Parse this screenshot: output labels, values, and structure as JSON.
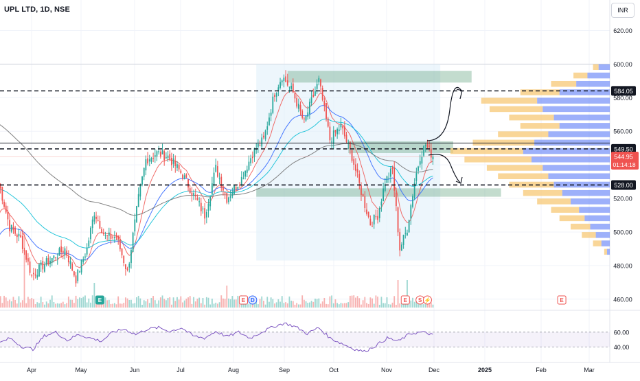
{
  "header": {
    "title": "UPL LTD, 1D, NSE",
    "currency": "INR"
  },
  "colors": {
    "up": "#26a69a",
    "down": "#ef5350",
    "ema_fast": "#ef5350",
    "ema_mid": "#2962ff",
    "ema_slow": "#00bcd4",
    "ema_long": "#6d6d6d",
    "rsi": "#7e57c2",
    "vp_up": "#f7c46c",
    "vp_down": "#5b7cf6",
    "zone": "#6aa884",
    "range": "#dfeefa"
  },
  "chart_data": [
    {
      "type": "candlestick",
      "title": "UPL LTD, 1D, NSE",
      "x_ticks": [
        "Apr",
        "May",
        "Jun",
        "Jul",
        "Aug",
        "Sep",
        "Oct",
        "Nov",
        "Dec",
        "2025",
        "Feb",
        "Mar"
      ],
      "y_ticks": [
        "460.00",
        "480.00",
        "500.00",
        "520.00",
        "540.00",
        "560.00",
        "580.00",
        "600.00",
        "620.00"
      ],
      "ylim": [
        455,
        630
      ],
      "price_path": [
        {
          "day": 0,
          "close": 530
        },
        {
          "day": 6,
          "close": 503
        },
        {
          "day": 12,
          "close": 496
        },
        {
          "day": 18,
          "close": 474
        },
        {
          "day": 24,
          "close": 480
        },
        {
          "day": 30,
          "close": 485
        },
        {
          "day": 36,
          "close": 490
        },
        {
          "day": 42,
          "close": 472
        },
        {
          "day": 48,
          "close": 490
        },
        {
          "day": 52,
          "close": 512
        },
        {
          "day": 58,
          "close": 497
        },
        {
          "day": 64,
          "close": 497
        },
        {
          "day": 70,
          "close": 476
        },
        {
          "day": 76,
          "close": 520
        },
        {
          "day": 80,
          "close": 543
        },
        {
          "day": 86,
          "close": 547
        },
        {
          "day": 92,
          "close": 545
        },
        {
          "day": 100,
          "close": 534
        },
        {
          "day": 106,
          "close": 522
        },
        {
          "day": 112,
          "close": 510
        },
        {
          "day": 118,
          "close": 538
        },
        {
          "day": 124,
          "close": 520
        },
        {
          "day": 132,
          "close": 532
        },
        {
          "day": 138,
          "close": 547
        },
        {
          "day": 144,
          "close": 555
        },
        {
          "day": 150,
          "close": 583
        },
        {
          "day": 154,
          "close": 593
        },
        {
          "day": 160,
          "close": 583
        },
        {
          "day": 166,
          "close": 565
        },
        {
          "day": 170,
          "close": 578
        },
        {
          "day": 174,
          "close": 590
        },
        {
          "day": 180,
          "close": 555
        },
        {
          "day": 186,
          "close": 563
        },
        {
          "day": 192,
          "close": 545
        },
        {
          "day": 198,
          "close": 520
        },
        {
          "day": 202,
          "close": 505
        },
        {
          "day": 206,
          "close": 510
        },
        {
          "day": 210,
          "close": 530
        },
        {
          "day": 214,
          "close": 537
        },
        {
          "day": 218,
          "close": 490
        },
        {
          "day": 222,
          "close": 502
        },
        {
          "day": 226,
          "close": 530
        },
        {
          "day": 229,
          "close": 545
        },
        {
          "day": 232,
          "close": 552
        },
        {
          "day": 236,
          "close": 544.95
        }
      ],
      "horizontal_levels": [
        {
          "price": 584.05,
          "label": "584.05",
          "style": "dashed"
        },
        {
          "price": 549.5,
          "label": "549.50",
          "style": "dashed"
        },
        {
          "price": 528.0,
          "label": "528.00",
          "style": "dashed"
        },
        {
          "price": 553.0,
          "label": "",
          "style": "solid"
        }
      ],
      "last_price": {
        "label": "544.95",
        "countdown": "01:14:18"
      },
      "zones": [
        {
          "from_day": 157,
          "to_day": 257,
          "low": 589,
          "high": 596
        },
        {
          "from_day": 190,
          "to_day": 247,
          "low": 547,
          "high": 554
        },
        {
          "from_day": 140,
          "to_day": 273,
          "low": 521,
          "high": 526
        }
      ],
      "range_box": {
        "from_day": 140,
        "to_day": 240,
        "low": 483,
        "high": 600
      },
      "volume_profile_rows": [
        {
          "price": 598,
          "up": 10,
          "down": 20
        },
        {
          "price": 593,
          "up": 25,
          "down": 40
        },
        {
          "price": 588,
          "up": 45,
          "down": 60
        },
        {
          "price": 583,
          "up": 70,
          "down": 90
        },
        {
          "price": 578,
          "up": 100,
          "down": 130
        },
        {
          "price": 573,
          "up": 95,
          "down": 120
        },
        {
          "price": 568,
          "up": 80,
          "down": 100
        },
        {
          "price": 563,
          "up": 70,
          "down": 90
        },
        {
          "price": 558,
          "up": 90,
          "down": 110
        },
        {
          "price": 553,
          "up": 110,
          "down": 135
        },
        {
          "price": 548,
          "up": 130,
          "down": 155
        },
        {
          "price": 543,
          "up": 120,
          "down": 140
        },
        {
          "price": 538,
          "up": 100,
          "down": 120
        },
        {
          "price": 533,
          "up": 90,
          "down": 110
        },
        {
          "price": 528,
          "up": 80,
          "down": 100
        },
        {
          "price": 523,
          "up": 70,
          "down": 85
        },
        {
          "price": 518,
          "up": 60,
          "down": 70
        },
        {
          "price": 513,
          "up": 50,
          "down": 55
        },
        {
          "price": 508,
          "up": 45,
          "down": 45
        },
        {
          "price": 503,
          "up": 35,
          "down": 35
        },
        {
          "price": 498,
          "up": 25,
          "down": 25
        },
        {
          "price": 493,
          "up": 15,
          "down": 15
        },
        {
          "price": 488,
          "up": 5,
          "down": 5
        }
      ]
    },
    {
      "type": "line",
      "title": "",
      "y_ticks": [
        "40.00",
        "60.00"
      ],
      "ylim": [
        25,
        80
      ],
      "band": [
        40,
        60
      ],
      "values": [
        45,
        52,
        41,
        37,
        55,
        60,
        49,
        57,
        52,
        48,
        60,
        64,
        57,
        64,
        66,
        61,
        66,
        55,
        52,
        61,
        54,
        60,
        52,
        60,
        67,
        72,
        67,
        58,
        66,
        52,
        45,
        38,
        34,
        42,
        52,
        48,
        58,
        60,
        57
      ]
    }
  ],
  "badges": [
    {
      "letter": "E",
      "type": "earnings"
    },
    {
      "letter": "E",
      "type": "earnings"
    },
    {
      "letter": "D",
      "type": "dividend"
    },
    {
      "letter": "E",
      "type": "earnings"
    },
    {
      "letter": "S",
      "type": "split"
    },
    {
      "letter": "⚡",
      "type": "event"
    },
    {
      "letter": "E",
      "type": "earnings"
    }
  ]
}
